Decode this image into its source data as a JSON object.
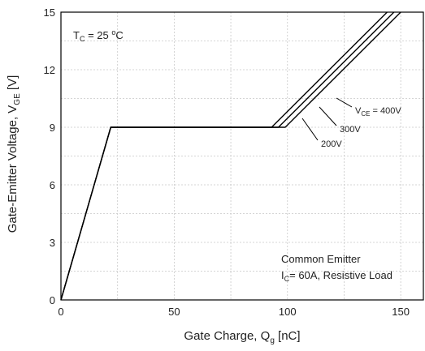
{
  "chart_data": {
    "type": "line",
    "xlabel_parts": [
      "Gate Charge, Q",
      "g",
      " [nC]"
    ],
    "ylabel_parts": [
      "Gate-Emitter Voltage, V",
      "GE",
      " [V]"
    ],
    "xlim": [
      0,
      160
    ],
    "ylim": [
      0,
      15
    ],
    "x_ticks": [
      0,
      50,
      100,
      150
    ],
    "y_ticks": [
      0,
      3,
      6,
      9,
      12,
      15
    ],
    "grid": true,
    "series": [
      {
        "name": "200V",
        "x": [
          0,
          22,
          99,
          150
        ],
        "y": [
          0,
          9,
          9,
          15
        ]
      },
      {
        "name": "300V",
        "x": [
          0,
          22,
          96,
          147
        ],
        "y": [
          0,
          9,
          9,
          15
        ]
      },
      {
        "name": "400V",
        "x": [
          0,
          22,
          93,
          144
        ],
        "y": [
          0,
          9,
          9,
          15
        ]
      }
    ],
    "annotations": {
      "temp": {
        "parts": [
          "T",
          "C",
          " = 25 ",
          "o",
          "C"
        ]
      },
      "vce": {
        "parts": [
          "V",
          "CE",
          " = 400V"
        ]
      },
      "v300": "300V",
      "v200": "200V",
      "cond1": "Common Emitter",
      "cond2_parts": [
        "I",
        "C",
        "= 60A, Resistive Load"
      ]
    }
  }
}
